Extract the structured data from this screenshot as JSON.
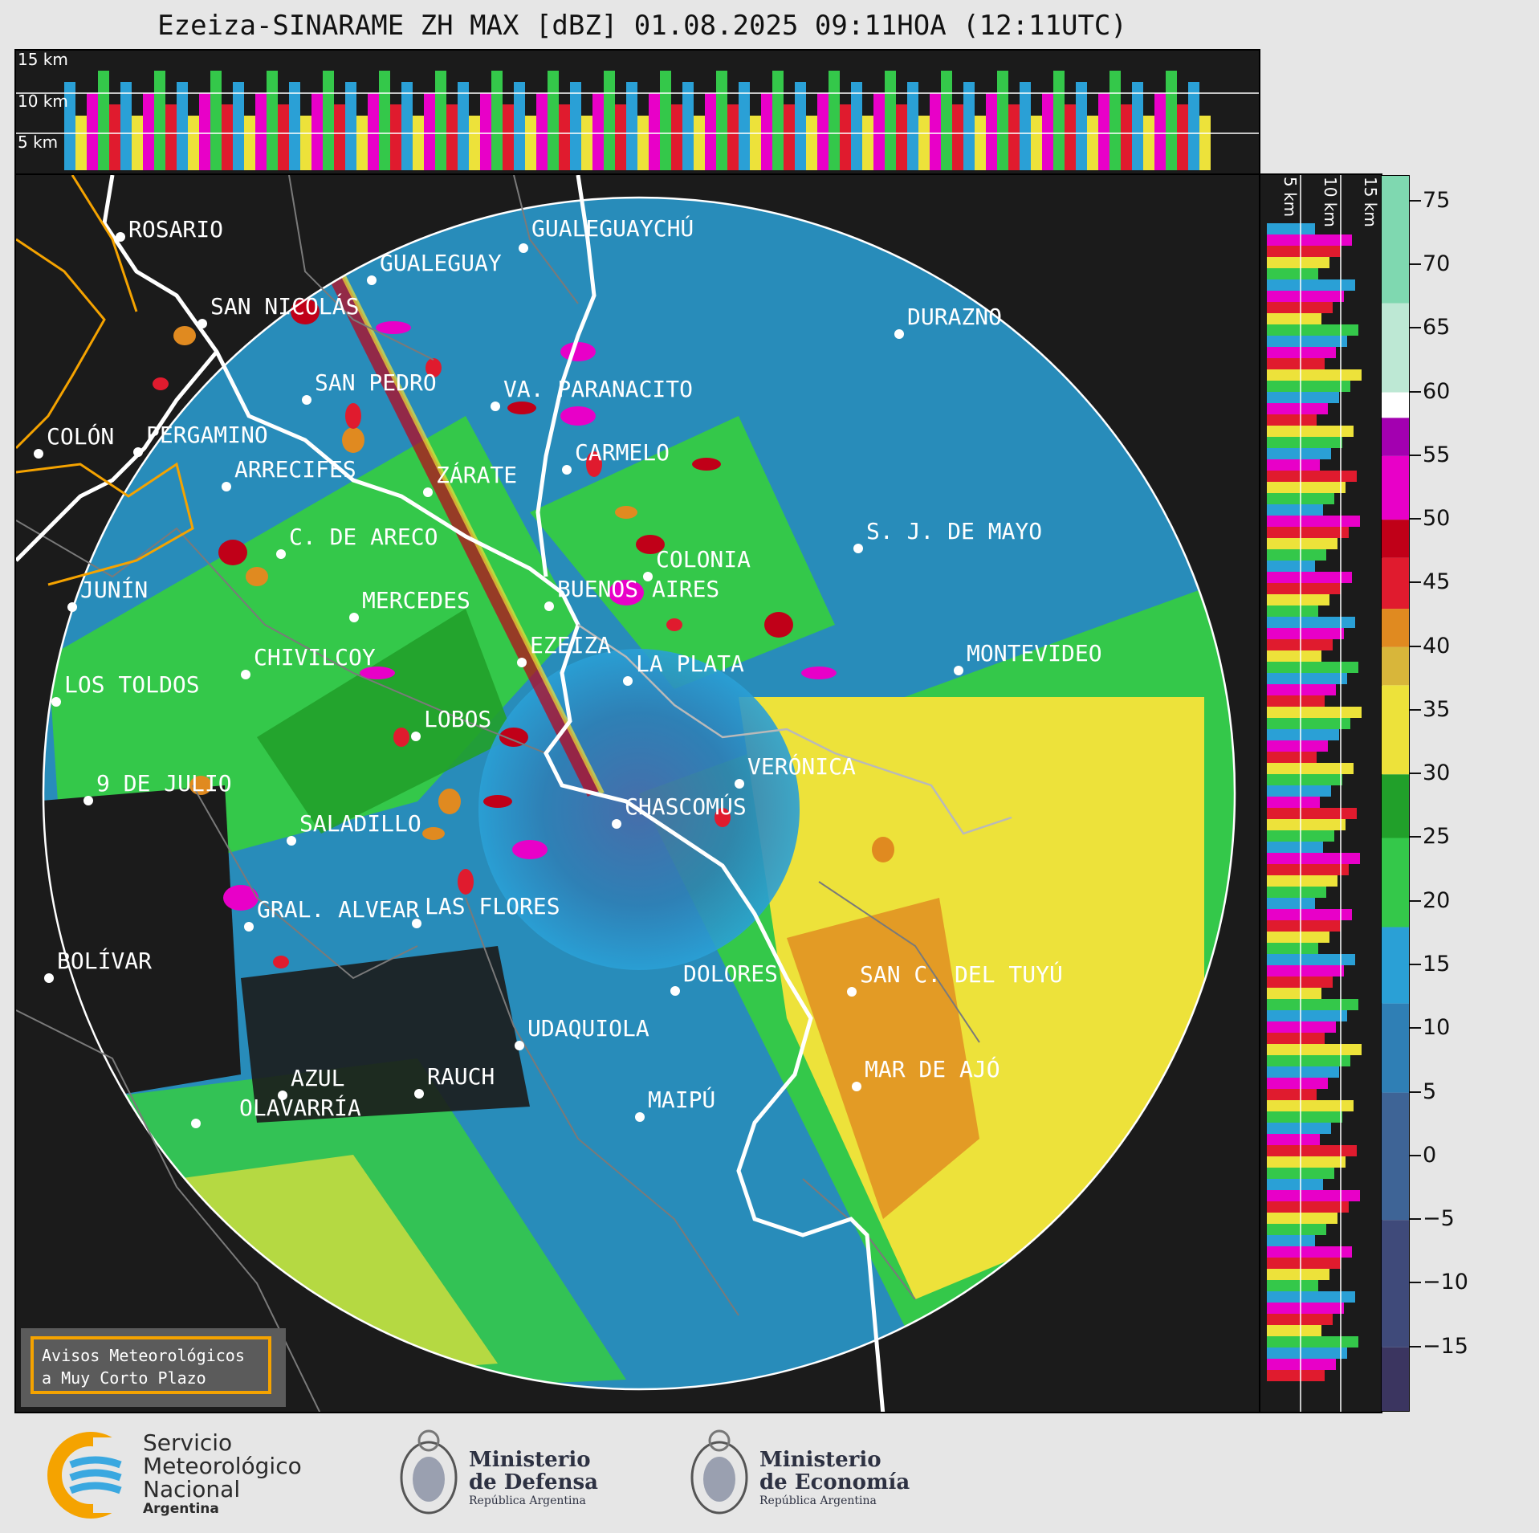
{
  "title": "Ezeiza-SINARAME ZH MAX [dBZ] 01.08.2025 09:11HOA (12:11UTC)",
  "top_panel_heights": [
    "15 km",
    "10 km",
    "5 km"
  ],
  "side_panel_heights": [
    "5 km",
    "10 km",
    "15 km"
  ],
  "cities": [
    {
      "name": "ROSARIO"
    },
    {
      "name": "GUALEGUAYCHÚ"
    },
    {
      "name": "GUALEGUAY"
    },
    {
      "name": "SAN NICOLÁS"
    },
    {
      "name": "DURAZNO"
    },
    {
      "name": "SAN PEDRO"
    },
    {
      "name": "VA. PARANACITO"
    },
    {
      "name": "COLÓN"
    },
    {
      "name": "PERGAMINO"
    },
    {
      "name": "CARMELO"
    },
    {
      "name": "ARRECIFES"
    },
    {
      "name": "ZÁRATE"
    },
    {
      "name": "C. DE ARECO"
    },
    {
      "name": "S. J. DE MAYO"
    },
    {
      "name": "COLONIA"
    },
    {
      "name": "JUNÍN"
    },
    {
      "name": "BUENOS AIRES"
    },
    {
      "name": "MERCEDES"
    },
    {
      "name": "EZEIZA"
    },
    {
      "name": "MONTEVIDEO"
    },
    {
      "name": "CHIVILCOY"
    },
    {
      "name": "LA PLATA"
    },
    {
      "name": "LOS TOLDOS"
    },
    {
      "name": "LOBOS"
    },
    {
      "name": "VERÓNICA"
    },
    {
      "name": "9 DE JULIO"
    },
    {
      "name": "CHASCOMÚS"
    },
    {
      "name": "SALADILLO"
    },
    {
      "name": "GRAL. ALVEAR"
    },
    {
      "name": "LAS FLORES"
    },
    {
      "name": "BOLÍVAR"
    },
    {
      "name": "DOLORES"
    },
    {
      "name": "SAN C. DEL TUYÚ"
    },
    {
      "name": "UDAQUIOLA"
    },
    {
      "name": "MAR DE AJÓ"
    },
    {
      "name": "AZUL"
    },
    {
      "name": "RAUCH"
    },
    {
      "name": "OLAVARRÍA"
    },
    {
      "name": "MAIPÚ"
    }
  ],
  "colorbar": {
    "unit": "dBZ",
    "range": [
      -20,
      77
    ],
    "ticks": [
      "75",
      "70",
      "65",
      "60",
      "55",
      "50",
      "45",
      "40",
      "35",
      "30",
      "25",
      "20",
      "15",
      "10",
      "5",
      "0",
      "−5",
      "−10",
      "−15"
    ],
    "tick_values": [
      75,
      70,
      65,
      60,
      55,
      50,
      45,
      40,
      35,
      30,
      25,
      20,
      15,
      10,
      5,
      0,
      -5,
      -10,
      -15
    ],
    "colors": [
      "#3b3560",
      "#3f4a7a",
      "#3e6496",
      "#2f7fb5",
      "#2aa0d6",
      "#34c84a",
      "#21a02a",
      "#ede23a",
      "#d8b63a",
      "#e08a20",
      "#e01b2e",
      "#c00018",
      "#e800c8",
      "#a300b0",
      "#ffffff",
      "#bde8d4",
      "#7fd8b0"
    ]
  },
  "avisos": {
    "line1": "Avisos Meteorológicos",
    "line2": "a Muy Corto Plazo"
  },
  "logos": {
    "smn": {
      "line1": "Servicio",
      "line2": "Meteorológico",
      "line3": "Nacional",
      "line4": "Argentina"
    },
    "defensa": {
      "line1": "Ministerio",
      "line2": "de Defensa",
      "line3": "República Argentina"
    },
    "economia": {
      "line1": "Ministerio",
      "line2": "de Economía",
      "line3": "República Argentina"
    }
  }
}
